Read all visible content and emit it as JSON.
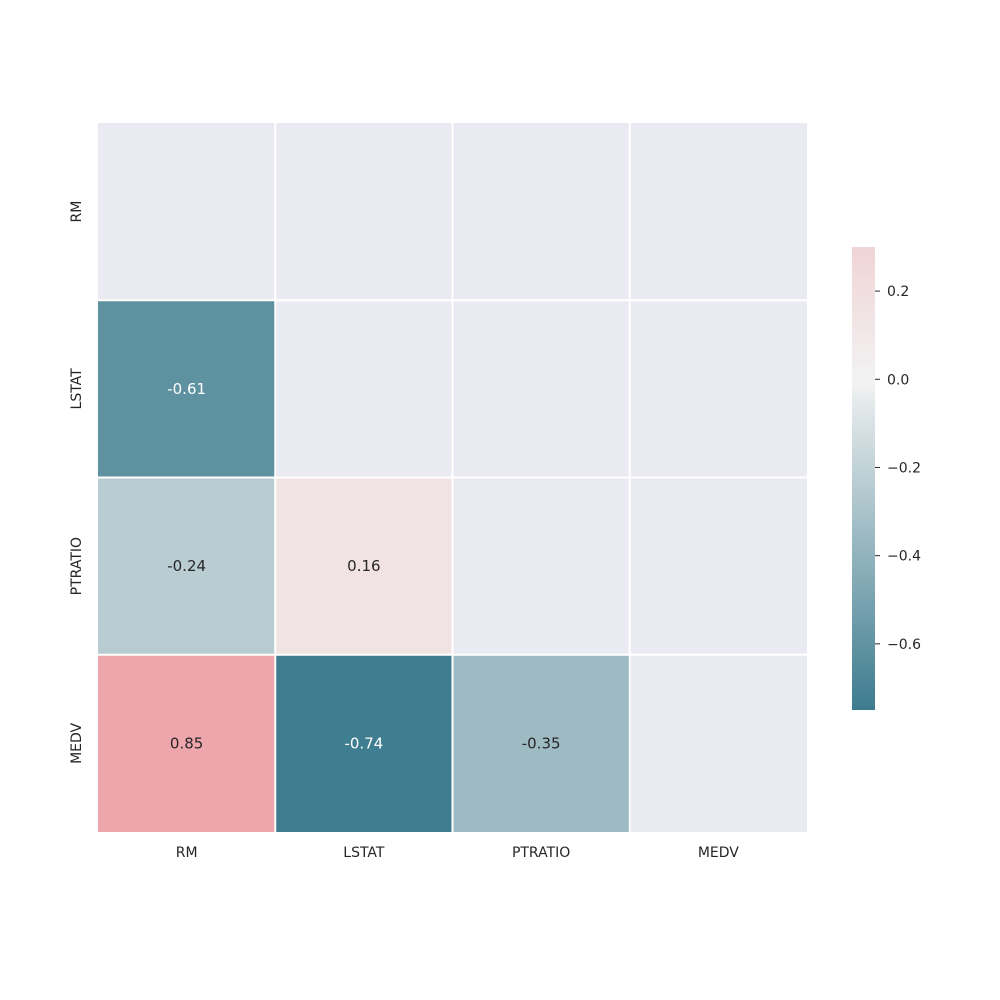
{
  "chart_data": {
    "type": "heatmap",
    "title": "",
    "xlabel": "",
    "ylabel": "",
    "x_categories": [
      "RM",
      "LSTAT",
      "PTRATIO",
      "MEDV"
    ],
    "y_categories": [
      "RM",
      "LSTAT",
      "PTRATIO",
      "MEDV"
    ],
    "mask": "upper-triangle-including-diagonal",
    "cells": [
      {
        "row": "LSTAT",
        "col": "RM",
        "value": -0.61,
        "label": "-0.61"
      },
      {
        "row": "PTRATIO",
        "col": "RM",
        "value": -0.24,
        "label": "-0.24"
      },
      {
        "row": "PTRATIO",
        "col": "LSTAT",
        "value": 0.16,
        "label": "0.16"
      },
      {
        "row": "MEDV",
        "col": "RM",
        "value": 0.85,
        "label": "0.85"
      },
      {
        "row": "MEDV",
        "col": "LSTAT",
        "value": -0.74,
        "label": "-0.74"
      },
      {
        "row": "MEDV",
        "col": "PTRATIO",
        "value": -0.35,
        "label": "-0.35"
      }
    ],
    "colorbar": {
      "vmin": -0.75,
      "vmax": 0.3,
      "ticks": [
        0.2,
        0.0,
        -0.2,
        -0.4,
        -0.6
      ],
      "tick_labels": [
        "0.2",
        "0.0",
        "−0.2",
        "−0.4",
        "−0.6"
      ]
    },
    "colors": {
      "negative_end": "#3d7c8f",
      "center": "#f2f2f2",
      "positive_end": "#eea6ad",
      "masked_background": "#eaeaf2",
      "grid_line": "#ffffff",
      "annot_light": "#ffffff",
      "annot_dark": "#262626"
    }
  }
}
